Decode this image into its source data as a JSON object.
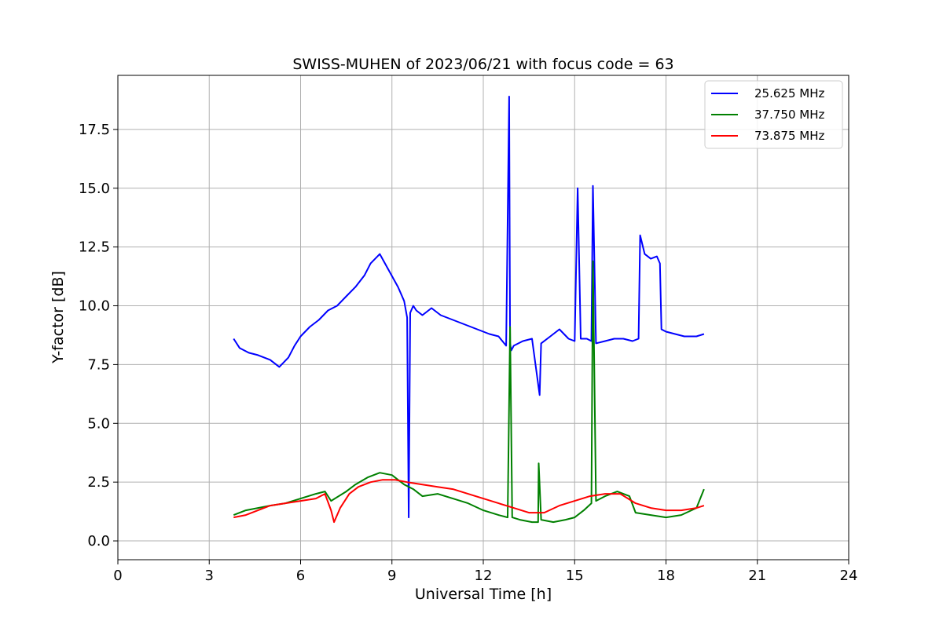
{
  "chart_data": {
    "type": "line",
    "title": "SWISS-MUHEN of 2023/06/21 with focus code = 63",
    "xlabel": "Universal Time [h]",
    "ylabel": "Y-factor [dB]",
    "xlim": [
      0,
      24
    ],
    "ylim": [
      -0.8,
      19.8
    ],
    "xticks": [
      0,
      3,
      6,
      9,
      12,
      15,
      18,
      21,
      24
    ],
    "xtick_labels": [
      "0",
      "3",
      "6",
      "9",
      "12",
      "15",
      "18",
      "21",
      "24"
    ],
    "yticks": [
      0,
      2.5,
      5,
      7.5,
      10,
      12.5,
      15,
      17.5
    ],
    "ytick_labels": [
      "0.0",
      "2.5",
      "5.0",
      "7.5",
      "10.0",
      "12.5",
      "15.0",
      "17.5"
    ],
    "grid": true,
    "legend_position": "top-right",
    "series": [
      {
        "name": "25.625 MHz",
        "color": "#0000ff",
        "x": [
          3.8,
          4.0,
          4.3,
          4.6,
          5.0,
          5.3,
          5.6,
          5.8,
          6.0,
          6.3,
          6.6,
          6.9,
          7.2,
          7.5,
          7.8,
          8.1,
          8.3,
          8.6,
          8.9,
          9.2,
          9.4,
          9.5,
          9.55,
          9.6,
          9.7,
          9.8,
          10.0,
          10.3,
          10.6,
          11.0,
          11.4,
          11.8,
          12.2,
          12.5,
          12.75,
          12.85,
          12.88,
          12.92,
          13.0,
          13.3,
          13.6,
          13.85,
          13.9,
          14.2,
          14.5,
          14.8,
          15.0,
          15.1,
          15.2,
          15.4,
          15.55,
          15.6,
          15.7,
          16.0,
          16.3,
          16.6,
          16.9,
          17.1,
          17.15,
          17.3,
          17.5,
          17.7,
          17.8,
          17.85,
          18.0,
          18.3,
          18.6,
          19.0,
          19.25
        ],
        "y": [
          8.6,
          8.2,
          8.0,
          7.9,
          7.7,
          7.4,
          7.8,
          8.3,
          8.7,
          9.1,
          9.4,
          9.8,
          10.0,
          10.4,
          10.8,
          11.3,
          11.8,
          12.2,
          11.5,
          10.8,
          10.2,
          9.5,
          1.0,
          9.7,
          10.0,
          9.8,
          9.6,
          9.9,
          9.6,
          9.4,
          9.2,
          9.0,
          8.8,
          8.7,
          8.3,
          18.9,
          8.4,
          8.1,
          8.3,
          8.5,
          8.6,
          6.2,
          8.4,
          8.7,
          9.0,
          8.6,
          8.5,
          15.0,
          8.6,
          8.6,
          8.5,
          15.1,
          8.4,
          8.5,
          8.6,
          8.6,
          8.5,
          8.6,
          13.0,
          12.2,
          12.0,
          12.1,
          11.8,
          9.0,
          8.9,
          8.8,
          8.7,
          8.7,
          8.8
        ]
      },
      {
        "name": "37.750 MHz",
        "color": "#008000",
        "x": [
          3.8,
          4.2,
          4.6,
          5.0,
          5.5,
          6.0,
          6.5,
          6.8,
          7.0,
          7.5,
          7.8,
          8.2,
          8.6,
          9.0,
          9.4,
          9.7,
          10.0,
          10.5,
          11.0,
          11.5,
          12.0,
          12.5,
          12.8,
          12.88,
          12.95,
          13.2,
          13.6,
          13.8,
          13.82,
          13.9,
          14.3,
          14.7,
          15.0,
          15.3,
          15.55,
          15.6,
          15.7,
          16.0,
          16.4,
          16.8,
          17.0,
          17.5,
          18.0,
          18.5,
          19.0,
          19.25
        ],
        "y": [
          1.1,
          1.3,
          1.4,
          1.5,
          1.6,
          1.8,
          2.0,
          2.1,
          1.7,
          2.1,
          2.4,
          2.7,
          2.9,
          2.8,
          2.4,
          2.2,
          1.9,
          2.0,
          1.8,
          1.6,
          1.3,
          1.1,
          1.0,
          9.1,
          1.0,
          0.9,
          0.8,
          0.8,
          3.3,
          0.9,
          0.8,
          0.9,
          1.0,
          1.3,
          1.6,
          11.9,
          1.7,
          1.9,
          2.1,
          1.9,
          1.2,
          1.1,
          1.0,
          1.1,
          1.4,
          2.2
        ]
      },
      {
        "name": "73.875 MHz",
        "color": "#ff0000",
        "x": [
          3.8,
          4.2,
          4.6,
          5.0,
          5.5,
          6.0,
          6.5,
          6.8,
          7.0,
          7.1,
          7.3,
          7.6,
          7.9,
          8.3,
          8.7,
          9.1,
          9.5,
          10.0,
          10.5,
          11.0,
          11.5,
          12.0,
          12.5,
          13.0,
          13.5,
          14.0,
          14.5,
          15.0,
          15.5,
          16.0,
          16.5,
          17.0,
          17.5,
          18.0,
          18.5,
          19.0,
          19.25
        ],
        "y": [
          1.0,
          1.1,
          1.3,
          1.5,
          1.6,
          1.7,
          1.8,
          2.0,
          1.3,
          0.8,
          1.4,
          2.0,
          2.3,
          2.5,
          2.6,
          2.6,
          2.5,
          2.4,
          2.3,
          2.2,
          2.0,
          1.8,
          1.6,
          1.4,
          1.2,
          1.2,
          1.5,
          1.7,
          1.9,
          2.0,
          2.0,
          1.6,
          1.4,
          1.3,
          1.3,
          1.4,
          1.5
        ]
      }
    ]
  }
}
